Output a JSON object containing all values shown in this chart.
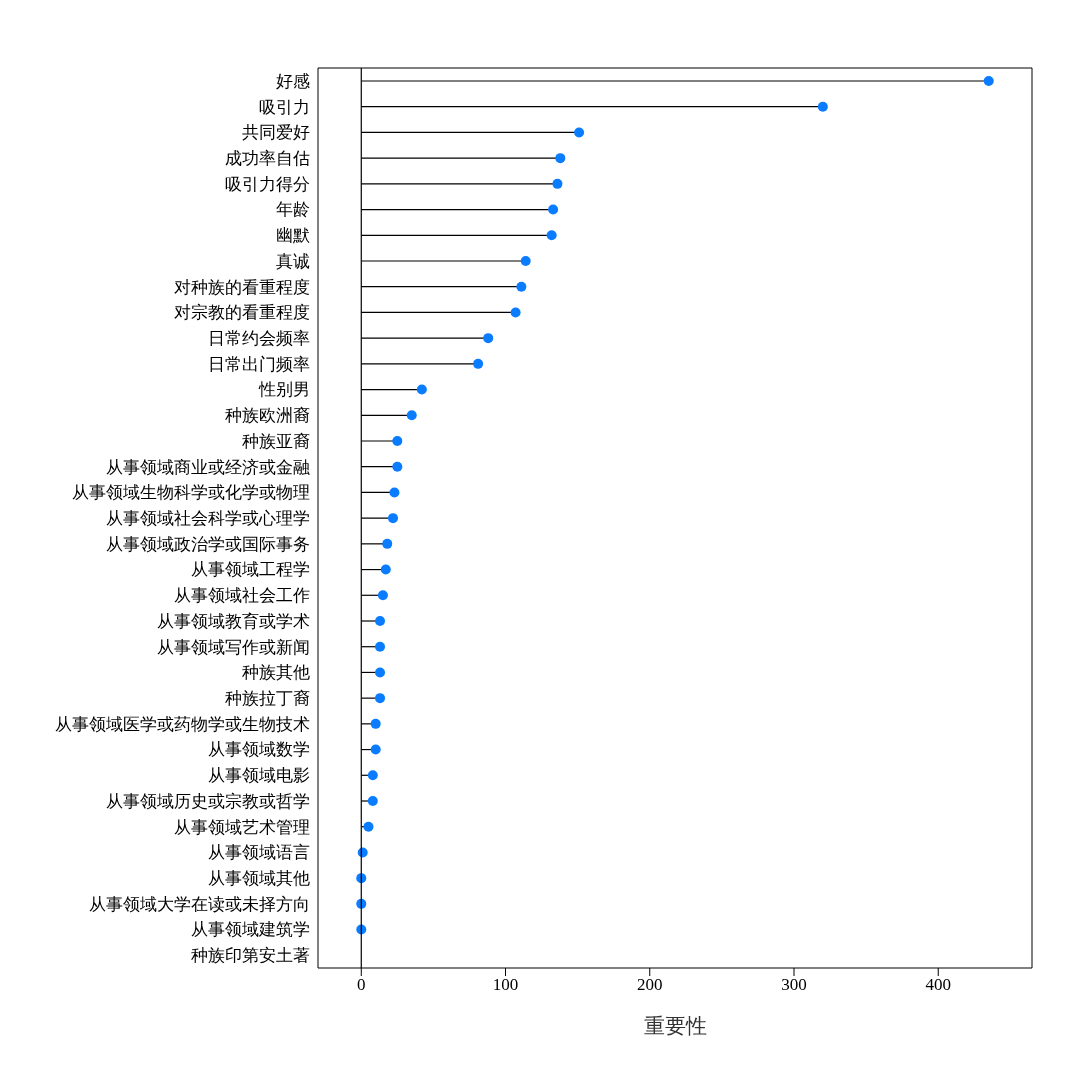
{
  "chart_data": {
    "type": "lollipop",
    "orientation": "horizontal",
    "xlabel": "重要性",
    "categories": [
      "好感",
      "吸引力",
      "共同爱好",
      "成功率自估",
      "吸引力得分",
      "年龄",
      "幽默",
      "真诚",
      "对种族的看重程度",
      "对宗教的看重程度",
      "日常约会频率",
      "日常出门频率",
      "性别男",
      "种族欧洲裔",
      "种族亚裔",
      "从事领域商业或经济或金融",
      "从事领域生物科学或化学或物理",
      "从事领域社会科学或心理学",
      "从事领域政治学或国际事务",
      "从事领域工程学",
      "从事领域社会工作",
      "从事领域教育或学术",
      "从事领域写作或新闻",
      "种族其他",
      "种族拉丁裔",
      "从事领域医学或药物学或生物技术",
      "从事领域数学",
      "从事领域电影",
      "从事领域历史或宗教或哲学",
      "从事领域艺术管理",
      "从事领域语言",
      "从事领域其他",
      "从事领域大学在读或未择方向",
      "从事领域建筑学",
      "种族印第安土著"
    ],
    "values": [
      435,
      320,
      151,
      138,
      136,
      133,
      132,
      114,
      111,
      107,
      88,
      81,
      42,
      35,
      25,
      25,
      23,
      22,
      18,
      17,
      15,
      13,
      13,
      13,
      13,
      10,
      10,
      8,
      8,
      5,
      1,
      0,
      0,
      0,
      null
    ],
    "color": "#0a7cff",
    "marker": "circle",
    "xlim": [
      -30,
      465
    ],
    "xticks": [
      0,
      100,
      200,
      300,
      400
    ],
    "ref_lines": [
      {
        "axis": "x",
        "value": 0
      }
    ]
  }
}
